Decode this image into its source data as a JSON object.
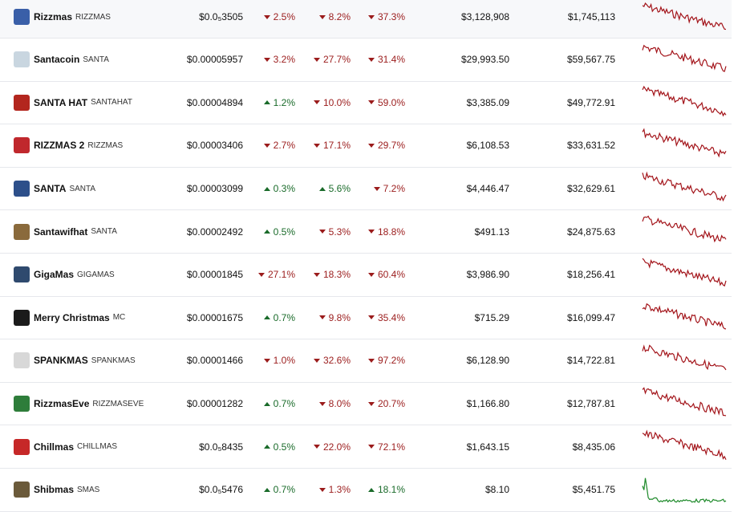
{
  "table": {
    "rows": [
      {
        "name": "Rizzmas",
        "symbol": "RIZZMAS",
        "price": "$0.0₅3505",
        "change_1h": {
          "text": "2.5%",
          "direction": "down"
        },
        "change_24h": {
          "text": "8.2%",
          "direction": "down"
        },
        "change_7d": {
          "text": "37.3%",
          "direction": "down"
        },
        "volume": "$3,128,908",
        "market_cap": "$1,745,113"
      },
      {
        "name": "Santacoin",
        "symbol": "SANTA",
        "price": "$0.00005957",
        "change_1h": {
          "text": "3.2%",
          "direction": "down"
        },
        "change_24h": {
          "text": "27.7%",
          "direction": "down"
        },
        "change_7d": {
          "text": "31.4%",
          "direction": "down"
        },
        "volume": "$29,993.50",
        "market_cap": "$59,567.75"
      },
      {
        "name": "SANTA HAT",
        "symbol": "SANTAHAT",
        "price": "$0.00004894",
        "change_1h": {
          "text": "1.2%",
          "direction": "up"
        },
        "change_24h": {
          "text": "10.0%",
          "direction": "down"
        },
        "change_7d": {
          "text": "59.0%",
          "direction": "down"
        },
        "volume": "$3,385.09",
        "market_cap": "$49,772.91"
      },
      {
        "name": "RIZZMAS 2",
        "symbol": "RIZZMAS",
        "price": "$0.00003406",
        "change_1h": {
          "text": "2.7%",
          "direction": "down"
        },
        "change_24h": {
          "text": "17.1%",
          "direction": "down"
        },
        "change_7d": {
          "text": "29.7%",
          "direction": "down"
        },
        "volume": "$6,108.53",
        "market_cap": "$33,631.52"
      },
      {
        "name": "SANTA",
        "symbol": "SANTA",
        "price": "$0.00003099",
        "change_1h": {
          "text": "0.3%",
          "direction": "up"
        },
        "change_24h": {
          "text": "5.6%",
          "direction": "up"
        },
        "change_7d": {
          "text": "7.2%",
          "direction": "down"
        },
        "volume": "$4,446.47",
        "market_cap": "$32,629.61"
      },
      {
        "name": "Santawifhat",
        "symbol": "SANTA",
        "price": "$0.00002492",
        "change_1h": {
          "text": "0.5%",
          "direction": "up"
        },
        "change_24h": {
          "text": "5.3%",
          "direction": "down"
        },
        "change_7d": {
          "text": "18.8%",
          "direction": "down"
        },
        "volume": "$491.13",
        "market_cap": "$24,875.63"
      },
      {
        "name": "GigaMas",
        "symbol": "GIGAMAS",
        "price": "$0.00001845",
        "change_1h": {
          "text": "27.1%",
          "direction": "down"
        },
        "change_24h": {
          "text": "18.3%",
          "direction": "down"
        },
        "change_7d": {
          "text": "60.4%",
          "direction": "down"
        },
        "volume": "$3,986.90",
        "market_cap": "$18,256.41"
      },
      {
        "name": "Merry Christmas",
        "symbol": "MC",
        "price": "$0.00001675",
        "change_1h": {
          "text": "0.7%",
          "direction": "up"
        },
        "change_24h": {
          "text": "9.8%",
          "direction": "down"
        },
        "change_7d": {
          "text": "35.4%",
          "direction": "down"
        },
        "volume": "$715.29",
        "market_cap": "$16,099.47"
      },
      {
        "name": "SPANKMAS",
        "symbol": "SPANKMAS",
        "price": "$0.00001466",
        "change_1h": {
          "text": "1.0%",
          "direction": "down"
        },
        "change_24h": {
          "text": "32.6%",
          "direction": "down"
        },
        "change_7d": {
          "text": "97.2%",
          "direction": "down"
        },
        "volume": "$6,128.90",
        "market_cap": "$14,722.81"
      },
      {
        "name": "RizzmasEve",
        "symbol": "RIZZMASEVE",
        "price": "$0.00001282",
        "change_1h": {
          "text": "0.7%",
          "direction": "up"
        },
        "change_24h": {
          "text": "8.0%",
          "direction": "down"
        },
        "change_7d": {
          "text": "20.7%",
          "direction": "down"
        },
        "volume": "$1,166.80",
        "market_cap": "$12,787.81"
      },
      {
        "name": "Chillmas",
        "symbol": "CHILLMAS",
        "price": "$0.0₅8435",
        "change_1h": {
          "text": "0.5%",
          "direction": "up"
        },
        "change_24h": {
          "text": "22.0%",
          "direction": "down"
        },
        "change_7d": {
          "text": "72.1%",
          "direction": "down"
        },
        "volume": "$1,643.15",
        "market_cap": "$8,435.06"
      },
      {
        "name": "Shibmas",
        "symbol": "SMAS",
        "price": "$0.0₅5476",
        "change_1h": {
          "text": "0.7%",
          "direction": "up"
        },
        "change_24h": {
          "text": "1.3%",
          "direction": "down"
        },
        "change_7d": {
          "text": "18.1%",
          "direction": "up"
        },
        "volume": "$8.10",
        "market_cap": "$5,451.75"
      }
    ]
  }
}
